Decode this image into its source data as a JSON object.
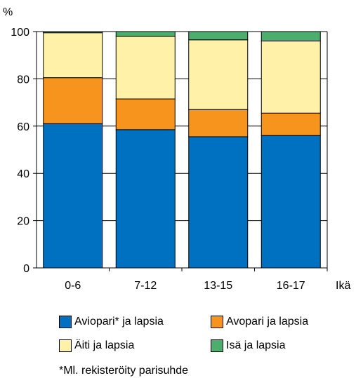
{
  "chart_data": {
    "type": "bar",
    "stacked": true,
    "ylabel": "%",
    "xlabel": "Ikä",
    "ylim": [
      0,
      100
    ],
    "yticks": [
      0,
      20,
      40,
      60,
      80,
      100
    ],
    "grid": true,
    "legend_position": "bottom",
    "categories": [
      "0-6",
      "7-12",
      "13-15",
      "16-17"
    ],
    "series": [
      {
        "name": "Aviopari* ja lapsia",
        "color": "#0070c0",
        "values": [
          61,
          58.5,
          55.5,
          56
        ]
      },
      {
        "name": "Avopari ja lapsia",
        "color": "#f7941d",
        "values": [
          19.5,
          13,
          11.5,
          9.5
        ]
      },
      {
        "name": "Äiti ja lapsia",
        "color": "#fff2a8",
        "values": [
          19,
          26.5,
          29.5,
          30.5
        ]
      },
      {
        "name": "Isä ja lapsia",
        "color": "#4cae6c",
        "values": [
          0.5,
          2,
          3.5,
          4
        ]
      }
    ],
    "footnote": "*Ml. rekisteröity parisuhde"
  }
}
